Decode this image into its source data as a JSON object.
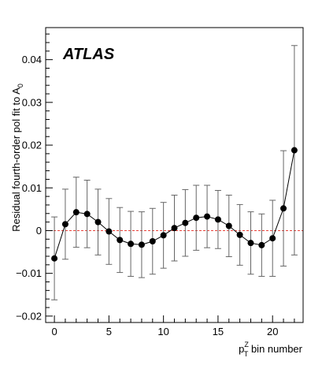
{
  "chart_data": {
    "type": "scatter",
    "experiment_label": "ATLAS",
    "ylabel": {
      "text": "Residual fourth-order pol fit to A",
      "subscript": "0"
    },
    "xlabel": {
      "base": "p",
      "superscript": "Z",
      "subscript": "T",
      "suffix": " bin number"
    },
    "xlim": [
      -0.8,
      22.8
    ],
    "ylim": [
      -0.0215,
      0.0475
    ],
    "x_ticks": [
      0,
      5,
      10,
      15,
      20
    ],
    "y_ticks": [
      -0.02,
      -0.01,
      0,
      0.01,
      0.02,
      0.03,
      0.04
    ],
    "y_tick_labels": [
      "−0.02",
      "−0.01",
      "0",
      "0.01",
      "0.02",
      "0.03",
      "0.04"
    ],
    "reference_line": {
      "y": 0,
      "color": "#e8433a",
      "style": "dashed"
    },
    "series": [
      {
        "marker_color": "#000000",
        "line_color": "#000000",
        "errorbar_color": "#666666",
        "points": [
          {
            "x": 0,
            "y": -0.0065,
            "err": 0.0097
          },
          {
            "x": 1,
            "y": 0.0015,
            "err": 0.0082
          },
          {
            "x": 2,
            "y": 0.0043,
            "err": 0.0082
          },
          {
            "x": 3,
            "y": 0.0039,
            "err": 0.0079
          },
          {
            "x": 4,
            "y": 0.002,
            "err": 0.0077
          },
          {
            "x": 5,
            "y": -0.0002,
            "err": 0.0077
          },
          {
            "x": 6,
            "y": -0.0022,
            "err": 0.0076
          },
          {
            "x": 7,
            "y": -0.0031,
            "err": 0.0076
          },
          {
            "x": 8,
            "y": -0.0033,
            "err": 0.0077
          },
          {
            "x": 9,
            "y": -0.0025,
            "err": 0.0077
          },
          {
            "x": 10,
            "y": -0.0011,
            "err": 0.0077
          },
          {
            "x": 11,
            "y": 0.0006,
            "err": 0.0077
          },
          {
            "x": 12,
            "y": 0.0018,
            "err": 0.0078
          },
          {
            "x": 13,
            "y": 0.003,
            "err": 0.0076
          },
          {
            "x": 14,
            "y": 0.0033,
            "err": 0.0073
          },
          {
            "x": 15,
            "y": 0.0026,
            "err": 0.0068
          },
          {
            "x": 16,
            "y": 0.0011,
            "err": 0.0072
          },
          {
            "x": 17,
            "y": -0.001,
            "err": 0.0071
          },
          {
            "x": 18,
            "y": -0.0029,
            "err": 0.0073
          },
          {
            "x": 19,
            "y": -0.0034,
            "err": 0.0073
          },
          {
            "x": 20,
            "y": -0.0018,
            "err": 0.0089
          },
          {
            "x": 21,
            "y": 0.0052,
            "err": 0.0135
          },
          {
            "x": 22,
            "y": 0.0188,
            "err": 0.0245
          }
        ]
      }
    ]
  }
}
